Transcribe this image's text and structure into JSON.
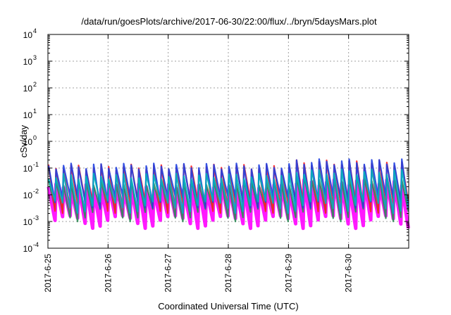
{
  "chart_data": {
    "type": "line",
    "title": "/data/run/goesPlots/archive/2017-06-30/22:00/flux/../bryn/5daysMars.plot",
    "xlabel": "Coordinated Universal Time (UTC)",
    "ylabel": "cSv/day",
    "y_scale": "log",
    "ylim": [
      0.0001,
      10000
    ],
    "y_ticks": [
      {
        "value": 0.0001,
        "base": "10",
        "exp": "-4"
      },
      {
        "value": 0.001,
        "base": "10",
        "exp": "-3"
      },
      {
        "value": 0.01,
        "base": "10",
        "exp": "-2"
      },
      {
        "value": 0.1,
        "base": "10",
        "exp": "-1"
      },
      {
        "value": 1,
        "base": "10",
        "exp": "0"
      },
      {
        "value": 10,
        "base": "10",
        "exp": "1"
      },
      {
        "value": 100,
        "base": "10",
        "exp": "2"
      },
      {
        "value": 1000,
        "base": "10",
        "exp": "3"
      },
      {
        "value": 10000,
        "base": "10",
        "exp": "4"
      }
    ],
    "xlim": [
      "2017-06-25T00:00",
      "2017-07-01T00:00"
    ],
    "x_ticks": [
      "2017-6-25",
      "2017-6-26",
      "2017-6-27",
      "2017-6-28",
      "2017-6-29",
      "2017-6-30"
    ],
    "grid": true,
    "legend": "none",
    "pattern": {
      "oscillations_per_day": 8,
      "peak_range": [
        0.1,
        0.17
      ],
      "trough_range": [
        0.0008,
        0.0015
      ]
    },
    "series": [
      {
        "color": "#ff00ff",
        "peak": 0.02,
        "trough": 0.0011
      },
      {
        "color": "#2e8b57",
        "peak": 0.03,
        "trough": 0.002
      },
      {
        "color": "#ff2020",
        "peak": 0.11,
        "trough": 0.004
      },
      {
        "color": "#2040e0",
        "peak": 0.12,
        "trough": 0.006
      },
      {
        "color": "#00b0c0",
        "peak": 0.05,
        "trough": 0.004
      }
    ]
  }
}
